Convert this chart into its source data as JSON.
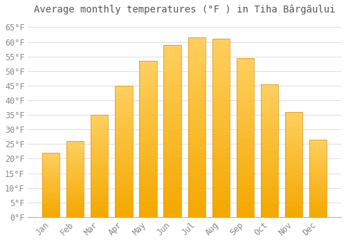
{
  "title": "Average monthly temperatures (°F ) in Tiha Bârgăului",
  "months": [
    "Jan",
    "Feb",
    "Mar",
    "Apr",
    "May",
    "Jun",
    "Jul",
    "Aug",
    "Sep",
    "Oct",
    "Nov",
    "Dec"
  ],
  "values": [
    22,
    26,
    35,
    45,
    53.5,
    59,
    61.5,
    61,
    54.5,
    45.5,
    36,
    26.5
  ],
  "bar_color_top": "#FFC84A",
  "bar_color_bottom": "#F5A800",
  "bar_edge_color": "#E09000",
  "background_color": "#FFFFFF",
  "grid_color": "#DDDDDD",
  "ylim": [
    0,
    68
  ],
  "yticks": [
    0,
    5,
    10,
    15,
    20,
    25,
    30,
    35,
    40,
    45,
    50,
    55,
    60,
    65
  ],
  "ylabel_format": "°F",
  "title_fontsize": 10,
  "tick_fontsize": 8.5,
  "text_color": "#888888",
  "axis_color": "#AAAAAA"
}
